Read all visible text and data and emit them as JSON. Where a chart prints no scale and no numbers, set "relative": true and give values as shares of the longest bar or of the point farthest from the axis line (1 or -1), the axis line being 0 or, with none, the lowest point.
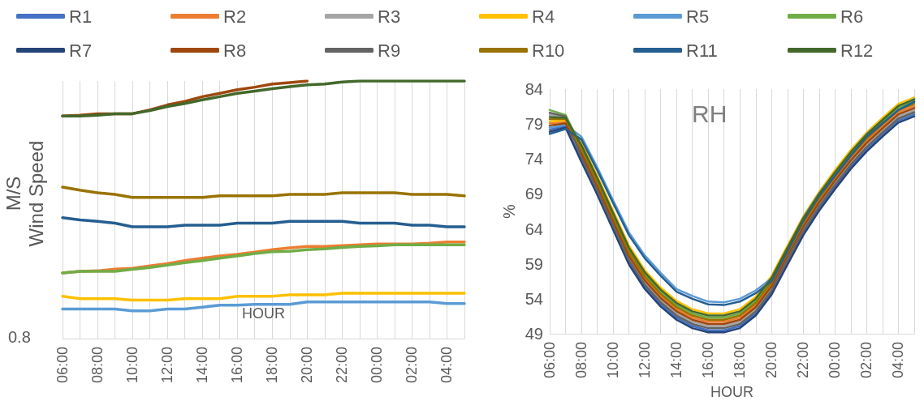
{
  "chart_data": [
    {
      "type": "line",
      "relative": true,
      "ylabel": "M/S\nWind Speed",
      "xlabel": "HOUR",
      "annotations": [
        "0.8"
      ],
      "grid": "x",
      "marker": "none",
      "line_style": "solid",
      "categories": [
        "06:00",
        null,
        "08:00",
        null,
        "10:00",
        null,
        "12:00",
        null,
        "14:00",
        null,
        "16:00",
        null,
        "18:00",
        null,
        "20:00",
        null,
        "22:00",
        null,
        "00:00",
        null,
        "02:00",
        null,
        "04:00",
        null
      ],
      "series": [
        {
          "color": "#ed7d31",
          "values": [
            0.255,
            0.261,
            0.263,
            0.27,
            0.273,
            0.282,
            0.291,
            0.303,
            0.312,
            0.321,
            0.327,
            0.336,
            0.345,
            0.352,
            0.358,
            0.358,
            0.361,
            0.364,
            0.367,
            0.367,
            0.367,
            0.37,
            0.375,
            0.375
          ]
        },
        {
          "color": "#ffc000",
          "values": [
            0.164,
            0.155,
            0.155,
            0.155,
            0.149,
            0.149,
            0.149,
            0.155,
            0.155,
            0.155,
            0.164,
            0.164,
            0.164,
            0.17,
            0.17,
            0.17,
            0.176,
            0.176,
            0.176,
            0.176,
            0.176,
            0.176,
            0.176,
            0.176
          ]
        },
        {
          "color": "#5b9bd5",
          "values": [
            0.115,
            0.115,
            0.115,
            0.115,
            0.108,
            0.108,
            0.115,
            0.115,
            0.122,
            0.13,
            0.13,
            0.133,
            0.133,
            0.133,
            0.142,
            0.142,
            0.142,
            0.142,
            0.142,
            0.142,
            0.142,
            0.142,
            0.136,
            0.136
          ]
        },
        {
          "color": "#70ad47",
          "values": [
            0.255,
            0.261,
            0.261,
            0.261,
            0.269,
            0.276,
            0.285,
            0.295,
            0.303,
            0.312,
            0.321,
            0.33,
            0.337,
            0.339,
            0.345,
            0.348,
            0.354,
            0.358,
            0.36,
            0.364,
            0.364,
            0.364,
            0.364,
            0.364
          ]
        },
        {
          "color": "#9e480e",
          "values": [
            0.864,
            0.867,
            0.873,
            0.873,
            0.873,
            0.888,
            0.907,
            0.921,
            0.939,
            0.952,
            0.966,
            0.976,
            0.988,
            0.994,
            1.0,
            null,
            null,
            null,
            null,
            null,
            null,
            null,
            null,
            null
          ]
        },
        {
          "color": "#997300",
          "values": [
            0.588,
            0.576,
            0.566,
            0.56,
            0.548,
            0.548,
            0.548,
            0.548,
            0.548,
            0.554,
            0.554,
            0.554,
            0.554,
            0.56,
            0.56,
            0.56,
            0.566,
            0.566,
            0.566,
            0.566,
            0.56,
            0.56,
            0.56,
            0.554
          ]
        },
        {
          "color": "#255e91",
          "values": [
            0.469,
            0.461,
            0.455,
            0.448,
            0.434,
            0.434,
            0.434,
            0.44,
            0.44,
            0.44,
            0.448,
            0.448,
            0.448,
            0.455,
            0.455,
            0.455,
            0.455,
            0.448,
            0.448,
            0.448,
            0.44,
            0.44,
            0.434,
            0.434
          ]
        },
        {
          "color": "#43682b",
          "values": [
            0.864,
            0.864,
            0.867,
            0.873,
            0.873,
            0.885,
            0.901,
            0.913,
            0.927,
            0.939,
            0.952,
            0.961,
            0.97,
            0.978,
            0.985,
            0.988,
            0.996,
            1.0,
            1.0,
            1.0,
            1.0,
            1.0,
            1.0,
            1.0
          ]
        }
      ]
    },
    {
      "type": "line",
      "title": "RH",
      "ylabel": "%",
      "xlabel": "HOUR",
      "grid": "x",
      "legend": "top",
      "marker": "none",
      "line_style": "solid",
      "ylim": [
        49,
        84
      ],
      "yticks": [
        49,
        54,
        59,
        64,
        69,
        74,
        79,
        84
      ],
      "categories": [
        "06:00",
        null,
        "08:00",
        null,
        "10:00",
        null,
        "12:00",
        null,
        "14:00",
        null,
        "16:00",
        null,
        "18:00",
        null,
        "20:00",
        null,
        "22:00",
        null,
        "00:00",
        null,
        "02:00",
        null,
        "04:00",
        null
      ],
      "series": [
        {
          "name": "R1",
          "color": "#4472c4",
          "values": [
            78.2,
            78.7,
            73.9,
            69.2,
            64.2,
            59.2,
            55.7,
            53.2,
            51.3,
            50.1,
            49.5,
            49.5,
            50.1,
            51.9,
            54.9,
            59.2,
            63.4,
            66.9,
            70.0,
            72.9,
            75.4,
            77.5,
            79.5,
            80.4
          ]
        },
        {
          "name": "R2",
          "color": "#ed7d31",
          "values": [
            79.1,
            79.3,
            75.1,
            70.4,
            65.4,
            60.4,
            56.9,
            54.4,
            52.5,
            51.3,
            50.7,
            50.7,
            51.3,
            53.1,
            56.1,
            60.4,
            64.6,
            68.1,
            71.2,
            74.1,
            76.6,
            78.7,
            80.7,
            81.6
          ]
        },
        {
          "name": "R3",
          "color": "#a5a5a5",
          "values": [
            80.3,
            80.0,
            74.5,
            69.8,
            64.8,
            59.8,
            56.3,
            53.8,
            51.9,
            50.7,
            50.1,
            50.1,
            50.7,
            52.5,
            55.5,
            59.8,
            64.0,
            67.5,
            70.6,
            73.5,
            76.0,
            78.1,
            80.1,
            81.0
          ]
        },
        {
          "name": "R4",
          "color": "#ffc000",
          "values": [
            79.4,
            79.5,
            76.3,
            71.6,
            66.6,
            61.6,
            58.1,
            55.6,
            53.7,
            52.5,
            51.9,
            51.9,
            52.5,
            54.3,
            57.3,
            61.6,
            65.8,
            69.3,
            72.4,
            75.3,
            77.8,
            79.9,
            81.9,
            82.8
          ]
        },
        {
          "name": "R5",
          "color": "#5b9bd5",
          "values": [
            78.5,
            78.9,
            77.2,
            72.8,
            68.1,
            63.5,
            60.2,
            57.7,
            55.4,
            54.4,
            53.6,
            53.5,
            54.0,
            55.2,
            56.9,
            61.2,
            65.6,
            69.1,
            72.0,
            74.9,
            77.6,
            79.5,
            81.4,
            82.6
          ]
        },
        {
          "name": "R6",
          "color": "#70ad47",
          "values": [
            81.0,
            80.3,
            75.7,
            71.0,
            66.0,
            61.0,
            57.5,
            55.0,
            53.1,
            51.9,
            51.3,
            51.3,
            51.9,
            53.7,
            56.7,
            61.0,
            65.2,
            68.7,
            71.8,
            74.7,
            77.2,
            79.3,
            81.3,
            82.2
          ]
        },
        {
          "name": "R7",
          "color": "#264478",
          "values": [
            77.9,
            78.5,
            73.6,
            68.9,
            63.9,
            58.9,
            55.4,
            52.9,
            51.0,
            49.8,
            49.2,
            49.2,
            49.8,
            51.6,
            54.6,
            58.9,
            63.1,
            66.6,
            69.7,
            72.6,
            75.1,
            77.2,
            79.2,
            80.1
          ]
        },
        {
          "name": "R8",
          "color": "#9e480e",
          "values": [
            78.8,
            79.1,
            74.8,
            70.1,
            65.1,
            60.1,
            56.6,
            54.1,
            52.2,
            51.0,
            50.4,
            50.4,
            51.0,
            52.8,
            55.8,
            60.1,
            64.3,
            67.8,
            70.9,
            73.8,
            76.3,
            78.4,
            80.4,
            81.3
          ]
        },
        {
          "name": "R9",
          "color": "#636363",
          "values": [
            80.6,
            80.1,
            74.2,
            69.5,
            64.5,
            59.5,
            56.0,
            53.5,
            51.6,
            50.4,
            49.8,
            49.8,
            50.4,
            52.2,
            55.2,
            59.5,
            63.7,
            67.2,
            70.3,
            73.2,
            75.7,
            77.8,
            79.8,
            80.7
          ]
        },
        {
          "name": "R10",
          "color": "#997300",
          "values": [
            79.7,
            79.7,
            75.4,
            70.7,
            65.7,
            60.7,
            57.2,
            54.7,
            52.8,
            51.6,
            51.0,
            51.0,
            51.6,
            53.4,
            56.4,
            60.7,
            64.9,
            68.4,
            71.5,
            74.4,
            76.9,
            79.0,
            81.0,
            81.9
          ]
        },
        {
          "name": "R11",
          "color": "#255e91",
          "values": [
            77.6,
            78.3,
            76.8,
            72.4,
            67.7,
            63.1,
            59.8,
            57.3,
            55.0,
            54.0,
            53.2,
            53.1,
            53.6,
            54.8,
            56.5,
            60.8,
            65.2,
            68.7,
            71.6,
            74.5,
            77.2,
            79.1,
            81.0,
            82.2
          ]
        },
        {
          "name": "R12",
          "color": "#43682b",
          "values": [
            80.0,
            79.9,
            76.0,
            71.3,
            66.3,
            61.3,
            57.8,
            55.3,
            53.4,
            52.2,
            51.6,
            51.6,
            52.2,
            54.0,
            57.0,
            61.3,
            65.5,
            69.0,
            72.1,
            75.0,
            77.5,
            79.6,
            81.6,
            82.5
          ]
        }
      ]
    }
  ]
}
